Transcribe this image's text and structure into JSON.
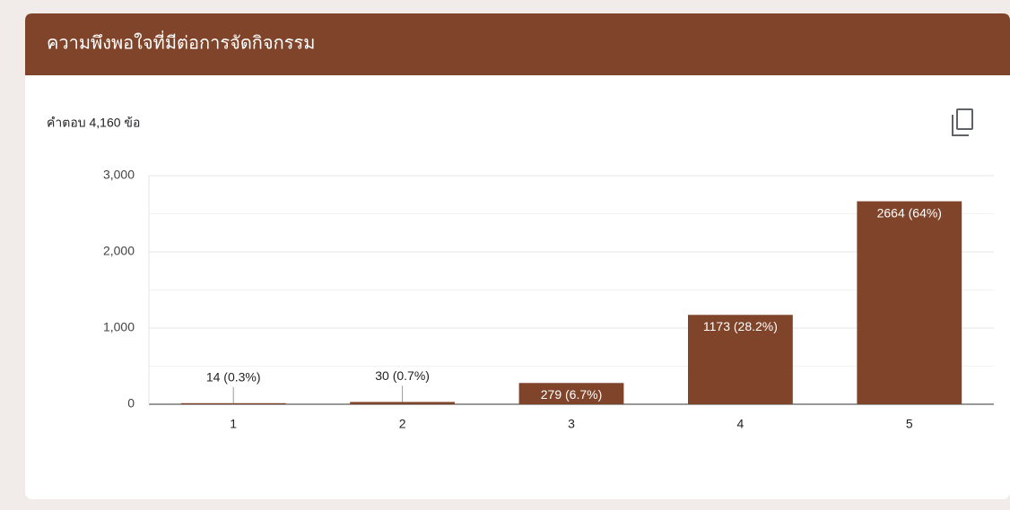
{
  "chart_data": {
    "type": "bar",
    "title": "ความพึงพอใจที่มีต่อการจัดกิจกรรม",
    "subtitle": "คำตอบ 4,160 ข้อ",
    "categories": [
      "1",
      "2",
      "3",
      "4",
      "5"
    ],
    "values": [
      14,
      30,
      279,
      1173,
      2664
    ],
    "value_labels": [
      "14 (0.3%)",
      "30 (0.7%)",
      "279 (6.7%)",
      "1173 (28.2%)",
      "2664 (64%)"
    ],
    "color": "#7f4429",
    "ylim": [
      0,
      3000
    ],
    "yticks": [
      0,
      {
        "value": 1000,
        "label": "1,000"
      },
      {
        "value": 2000,
        "label": "2,000"
      },
      {
        "value": 3000,
        "label": "3,000"
      }
    ],
    "minor_yticks": [
      500,
      1500,
      2500
    ],
    "grid": true
  }
}
